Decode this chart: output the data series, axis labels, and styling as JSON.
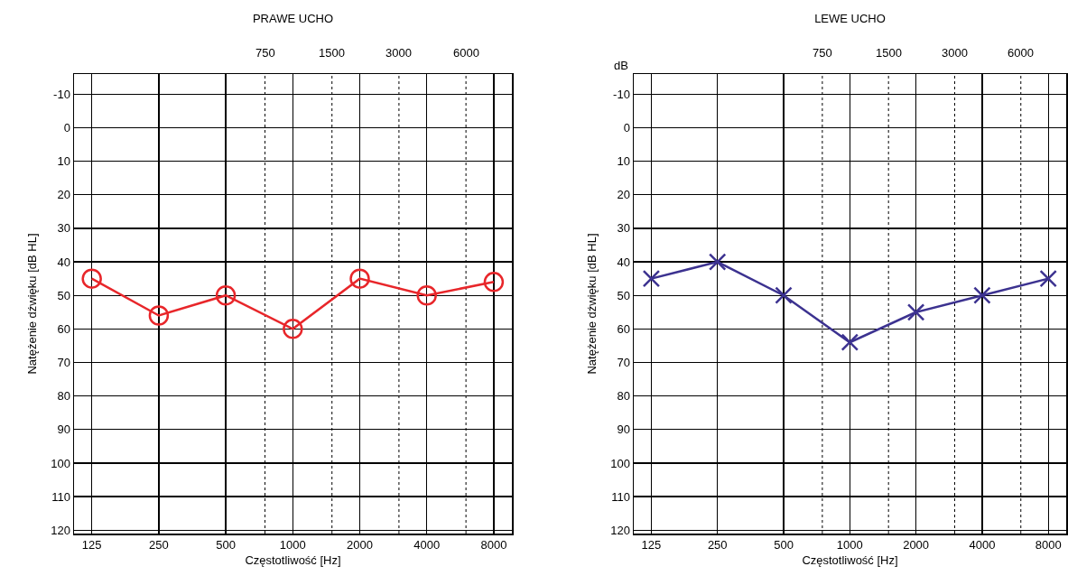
{
  "chart_data": [
    {
      "type": "line",
      "title": "PRAWE UCHO",
      "xlabel": "Częstotliwość [Hz]",
      "ylabel": "Natężenie dźwięku [dB HL]",
      "x": [
        125,
        250,
        500,
        1000,
        2000,
        4000,
        8000
      ],
      "series": [
        {
          "color": "#e8262a",
          "values": [
            45,
            56,
            50,
            60,
            45,
            50,
            46
          ]
        }
      ],
      "log": "x",
      "xlim": [
        104,
        9650
      ],
      "xticks": [
        125,
        250,
        500,
        1000,
        2000,
        4000,
        8000
      ],
      "ref_lines": [
        {
          "axis": "x",
          "value": 750,
          "label": "750",
          "line_style": "dotted",
          "color": "#000000"
        },
        {
          "axis": "x",
          "value": 1500,
          "label": "1500",
          "line_style": "dotted",
          "color": "#000000"
        },
        {
          "axis": "x",
          "value": 3000,
          "label": "3000",
          "line_style": "dotted",
          "color": "#000000"
        },
        {
          "axis": "x",
          "value": 6000,
          "label": "6000",
          "line_style": "dotted",
          "color": "#000000"
        }
      ],
      "ylim": [
        121,
        -16
      ],
      "yticks": [
        -10,
        0,
        10,
        20,
        30,
        40,
        50,
        60,
        70,
        80,
        90,
        100,
        110,
        120
      ],
      "grid": true,
      "marker": "circle",
      "line_style": "solid"
    },
    {
      "type": "line",
      "title": "LEWE UCHO",
      "xlabel": "Częstotliwość [Hz]",
      "ylabel": "Natężenie dźwięku [dB HL]",
      "x": [
        125,
        250,
        500,
        1000,
        2000,
        4000,
        8000
      ],
      "series": [
        {
          "color": "#3c3290",
          "values": [
            45,
            40,
            50,
            64,
            55,
            50,
            45
          ]
        }
      ],
      "log": "x",
      "xlim": [
        104,
        9650
      ],
      "xticks": [
        125,
        250,
        500,
        1000,
        2000,
        4000,
        8000
      ],
      "ref_lines": [
        {
          "axis": "x",
          "value": 750,
          "label": "750",
          "line_style": "dotted",
          "color": "#000000"
        },
        {
          "axis": "x",
          "value": 1500,
          "label": "1500",
          "line_style": "dotted",
          "color": "#000000"
        },
        {
          "axis": "x",
          "value": 3000,
          "label": "3000",
          "line_style": "dotted",
          "color": "#000000"
        },
        {
          "axis": "x",
          "value": 6000,
          "label": "6000",
          "line_style": "dotted",
          "color": "#000000"
        }
      ],
      "ylim": [
        121,
        -16
      ],
      "yticks": [
        -10,
        0,
        10,
        20,
        30,
        40,
        50,
        60,
        70,
        80,
        90,
        100,
        110,
        120
      ],
      "grid": true,
      "marker": "cross",
      "line_style": "solid",
      "annotations": [
        "dB"
      ]
    }
  ]
}
